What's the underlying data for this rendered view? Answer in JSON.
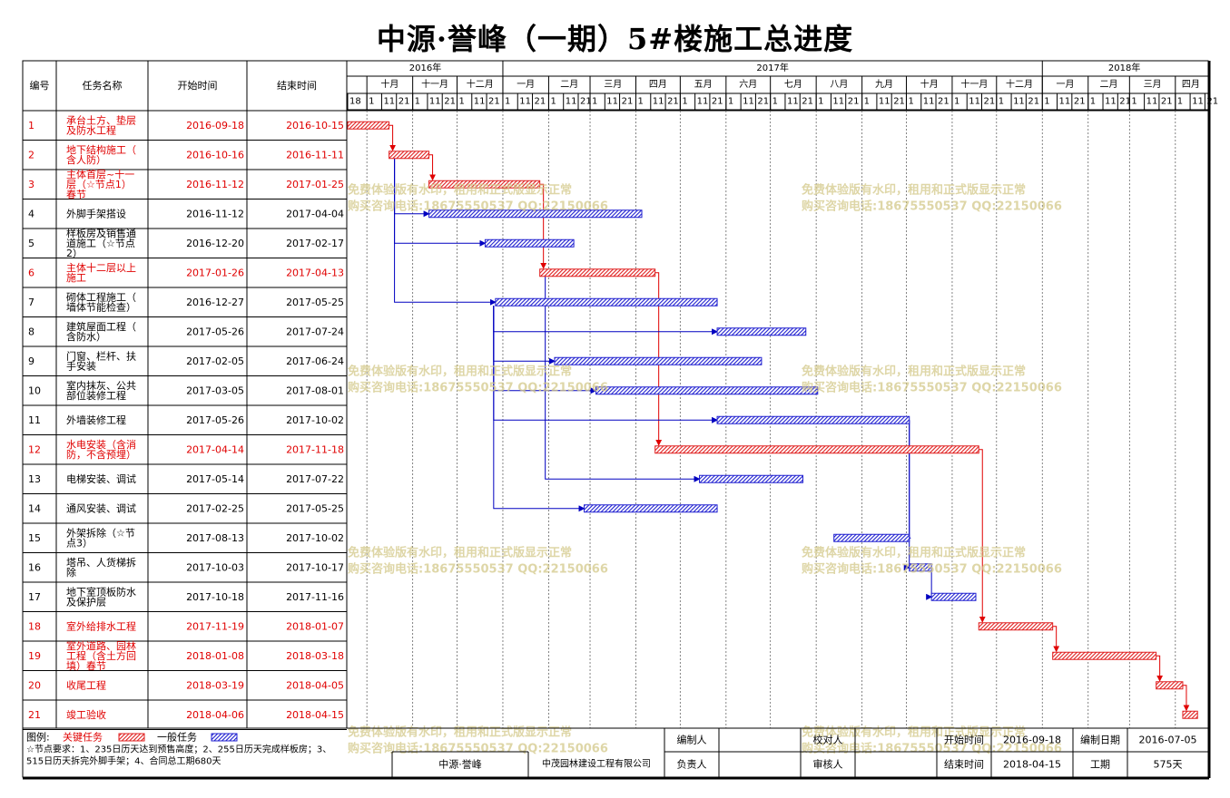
{
  "title": "中源·誉峰（一期）5#楼施工总进度",
  "headers": {
    "id": "编号",
    "name": "任务名称",
    "start": "开始时间",
    "end": "结束时间"
  },
  "timescale": {
    "years": [
      {
        "label": "2016年",
        "start": "2016-09-18",
        "end": "2017-01-01"
      },
      {
        "label": "2017年",
        "start": "2017-01-01",
        "end": "2018-01-01"
      },
      {
        "label": "2018年",
        "start": "2018-01-01",
        "end": "2018-04-22"
      }
    ],
    "months": [
      {
        "label": "十月",
        "start": "2016-10-01",
        "end": "2016-11-01"
      },
      {
        "label": "十一月",
        "start": "2016-11-01",
        "end": "2016-12-01"
      },
      {
        "label": "十二月",
        "start": "2016-12-01",
        "end": "2017-01-01"
      },
      {
        "label": "一月",
        "start": "2017-01-01",
        "end": "2017-02-01"
      },
      {
        "label": "二月",
        "start": "2017-02-01",
        "end": "2017-03-01"
      },
      {
        "label": "三月",
        "start": "2017-03-01",
        "end": "2017-04-01"
      },
      {
        "label": "四月",
        "start": "2017-04-01",
        "end": "2017-05-01"
      },
      {
        "label": "五月",
        "start": "2017-05-01",
        "end": "2017-06-01"
      },
      {
        "label": "六月",
        "start": "2017-06-01",
        "end": "2017-07-01"
      },
      {
        "label": "七月",
        "start": "2017-07-01",
        "end": "2017-08-01"
      },
      {
        "label": "八月",
        "start": "2017-08-01",
        "end": "2017-09-01"
      },
      {
        "label": "九月",
        "start": "2017-09-01",
        "end": "2017-10-01"
      },
      {
        "label": "十月",
        "start": "2017-10-01",
        "end": "2017-11-01"
      },
      {
        "label": "十一月",
        "start": "2017-11-01",
        "end": "2017-12-01"
      },
      {
        "label": "十二月",
        "start": "2017-12-01",
        "end": "2018-01-01"
      },
      {
        "label": "一月",
        "start": "2018-01-01",
        "end": "2018-02-01"
      },
      {
        "label": "二月",
        "start": "2018-02-01",
        "end": "2018-03-01"
      },
      {
        "label": "三月",
        "start": "2018-03-01",
        "end": "2018-04-01"
      },
      {
        "label": "四月",
        "start": "2018-04-01",
        "end": "2018-04-22"
      }
    ],
    "day_labels": [
      "1",
      "11",
      "21"
    ]
  },
  "chart_data": {
    "type": "gantt",
    "title": "中源·誉峰（一期）5#楼施工总进度",
    "x_range": [
      "2016-09-18",
      "2018-04-22"
    ],
    "tasks": [
      {
        "id": "1",
        "name": "承台土方、垫层及防水工程",
        "start": "2016-09-18",
        "end": "2016-10-15",
        "critical": true
      },
      {
        "id": "2",
        "name": "地下结构施工（含人防）",
        "start": "2016-10-16",
        "end": "2016-11-11",
        "critical": true
      },
      {
        "id": "3",
        "name": "主体首层~十一层（☆节点1）春节",
        "start": "2016-11-12",
        "end": "2017-01-25",
        "critical": true
      },
      {
        "id": "4",
        "name": "外脚手架搭设",
        "start": "2016-11-12",
        "end": "2017-04-04",
        "critical": false
      },
      {
        "id": "5",
        "name": "样板房及销售通道施工（☆节点2）",
        "start": "2016-12-20",
        "end": "2017-02-17",
        "critical": false
      },
      {
        "id": "6",
        "name": "主体十二层以上施工",
        "start": "2017-01-26",
        "end": "2017-04-13",
        "critical": true
      },
      {
        "id": "7",
        "name": "砌体工程施工（墙体节能检查）",
        "start": "2016-12-27",
        "end": "2017-05-25",
        "critical": false
      },
      {
        "id": "8",
        "name": "建筑屋面工程（含防水）",
        "start": "2017-05-26",
        "end": "2017-07-24",
        "critical": false
      },
      {
        "id": "9",
        "name": "门窗、栏杆、扶手安装",
        "start": "2017-02-05",
        "end": "2017-06-24",
        "critical": false
      },
      {
        "id": "10",
        "name": "室内抹灰、公共部位装修工程",
        "start": "2017-03-05",
        "end": "2017-08-01",
        "critical": false
      },
      {
        "id": "11",
        "name": "外墙装修工程",
        "start": "2017-05-26",
        "end": "2017-10-02",
        "critical": false
      },
      {
        "id": "12",
        "name": "水电安装（含消防，不含预埋）",
        "start": "2017-04-14",
        "end": "2017-11-18",
        "critical": true
      },
      {
        "id": "13",
        "name": "电梯安装、调试",
        "start": "2017-05-14",
        "end": "2017-07-22",
        "critical": false
      },
      {
        "id": "14",
        "name": "通风安装、调试",
        "start": "2017-02-25",
        "end": "2017-05-25",
        "critical": false
      },
      {
        "id": "15",
        "name": "外架拆除（☆节点3）",
        "start": "2017-08-13",
        "end": "2017-10-02",
        "critical": false
      },
      {
        "id": "16",
        "name": "塔吊、人货梯拆除",
        "start": "2017-10-03",
        "end": "2017-10-17",
        "critical": false
      },
      {
        "id": "17",
        "name": "地下室顶板防水及保护层",
        "start": "2017-10-18",
        "end": "2017-11-16",
        "critical": false
      },
      {
        "id": "18",
        "name": "室外给排水工程",
        "start": "2017-11-19",
        "end": "2018-01-07",
        "critical": true
      },
      {
        "id": "19",
        "name": "室外道路、园林工程（含土方回填）春节",
        "start": "2018-01-08",
        "end": "2018-03-18",
        "critical": true
      },
      {
        "id": "20",
        "name": "收尾工程",
        "start": "2018-03-19",
        "end": "2018-04-05",
        "critical": true
      },
      {
        "id": "21",
        "name": "竣工验收",
        "start": "2018-04-06",
        "end": "2018-04-15",
        "critical": true
      }
    ],
    "links": [
      {
        "from": 1,
        "to": 2,
        "critical": true
      },
      {
        "from": 2,
        "to": 3,
        "critical": true
      },
      {
        "from": 3,
        "to": 6,
        "critical": true
      },
      {
        "from": 6,
        "to": 12,
        "critical": true
      },
      {
        "from": 12,
        "to": 18,
        "critical": true
      },
      {
        "from": 18,
        "to": 19,
        "critical": true
      },
      {
        "from": 19,
        "to": 20,
        "critical": true
      },
      {
        "from": 20,
        "to": 21,
        "critical": true
      },
      {
        "from": 2,
        "to": 4,
        "critical": false
      },
      {
        "from": 2,
        "to": 5,
        "critical": false
      },
      {
        "from": 2,
        "to": 7,
        "critical": false
      },
      {
        "from": 7,
        "to": 8,
        "critical": false
      },
      {
        "from": 7,
        "to": 11,
        "critical": false
      },
      {
        "from": 6,
        "to": 13,
        "critical": false
      },
      {
        "from": 7,
        "to": 9,
        "critical": false
      },
      {
        "from": 7,
        "to": 10,
        "critical": false
      },
      {
        "from": 7,
        "to": 14,
        "critical": false
      },
      {
        "from": 11,
        "to": 15,
        "critical": false
      },
      {
        "from": 11,
        "to": 16,
        "critical": false
      },
      {
        "from": 16,
        "to": 17,
        "critical": false
      }
    ],
    "colors": {
      "critical": "#e02020",
      "normal": "#2020d0",
      "critical_link": "#e00000",
      "normal_link": "#0000c0"
    }
  },
  "watermark": {
    "line1": "免费体验版有水印，租用和正式版显示正常",
    "line2": "购买咨询电话:18675550537 QQ:22150066"
  },
  "footer": {
    "legend_label": "图例:",
    "critical_label": "关键任务",
    "normal_label": "一般任务",
    "note_line1": "☆节点要求：1、235日历天达到预售高度；2、255日历天完成样板房；3、",
    "note_line2": "515日历天拆完外脚手架；4、合同总工期680天",
    "project": "中源·誉峰",
    "company": "中茂园林建设工程有限公司",
    "compiler_label": "编制人",
    "responsible_label": "负责人",
    "proofreader_label": "校对人",
    "reviewer_label": "审核人",
    "start_label": "开始时间",
    "start_value": "2016-09-18",
    "end_label": "结束时间",
    "end_value": "2018-04-15",
    "date_label": "编制日期",
    "date_value": "2016-07-05",
    "duration_label": "工期",
    "duration_value": "575天"
  }
}
